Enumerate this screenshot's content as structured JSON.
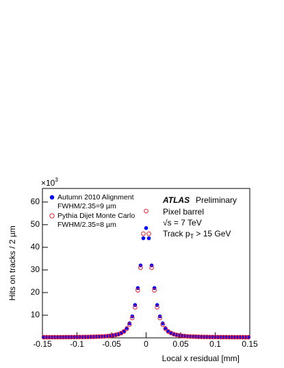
{
  "chart_data": {
    "type": "scatter",
    "x_label": "Local x residual [mm]",
    "y_label": "Hits on tracks / 2 µm",
    "y_multiplier": {
      "base": "×10",
      "exponent": "3"
    },
    "xlim": [
      -0.15,
      0.15
    ],
    "ylim": [
      0,
      66
    ],
    "xticks": [
      -0.15,
      -0.1,
      -0.05,
      0,
      0.05,
      0.1,
      0.15
    ],
    "yticks": [
      10,
      20,
      30,
      40,
      50,
      60
    ],
    "x": [
      -0.148,
      -0.144,
      -0.14,
      -0.136,
      -0.132,
      -0.128,
      -0.124,
      -0.12,
      -0.116,
      -0.112,
      -0.108,
      -0.104,
      -0.1,
      -0.096,
      -0.092,
      -0.088,
      -0.084,
      -0.08,
      -0.076,
      -0.072,
      -0.068,
      -0.064,
      -0.06,
      -0.056,
      -0.052,
      -0.048,
      -0.044,
      -0.04,
      -0.036,
      -0.032,
      -0.028,
      -0.024,
      -0.02,
      -0.016,
      -0.012,
      -0.008,
      -0.004,
      0,
      0.004,
      0.008,
      0.012,
      0.016,
      0.02,
      0.024,
      0.028,
      0.032,
      0.036,
      0.04,
      0.044,
      0.048,
      0.052,
      0.056,
      0.06,
      0.064,
      0.068,
      0.072,
      0.076,
      0.08,
      0.084,
      0.088,
      0.092,
      0.096,
      0.1,
      0.104,
      0.108,
      0.112,
      0.116,
      0.12,
      0.124,
      0.128,
      0.132,
      0.136,
      0.14,
      0.144,
      0.148
    ],
    "series": [
      {
        "name": "Autumn 2010 Alignment",
        "note": "FWHM/2.35=9 µm",
        "color": "#0000ff",
        "marker": "filled",
        "values": [
          0.27,
          0.27,
          0.28,
          0.28,
          0.29,
          0.29,
          0.3,
          0.3,
          0.31,
          0.32,
          0.33,
          0.34,
          0.35,
          0.36,
          0.37,
          0.39,
          0.41,
          0.43,
          0.46,
          0.5,
          0.54,
          0.6,
          0.68,
          0.78,
          0.9,
          1.1,
          1.35,
          1.7,
          2.2,
          3.0,
          4.3,
          6.4,
          9.5,
          14.5,
          22,
          32,
          44,
          48.5,
          44,
          32,
          22,
          14.5,
          9.5,
          6.4,
          4.3,
          3.0,
          2.2,
          1.7,
          1.35,
          1.1,
          0.9,
          0.78,
          0.68,
          0.6,
          0.54,
          0.5,
          0.46,
          0.43,
          0.41,
          0.39,
          0.37,
          0.36,
          0.35,
          0.34,
          0.33,
          0.32,
          0.31,
          0.3,
          0.3,
          0.29,
          0.29,
          0.28,
          0.28,
          0.27,
          0.27
        ]
      },
      {
        "name": "Pythia Dijet Monte Carlo",
        "note": "FWHM/2.35=8 µm",
        "color": "#e8202a",
        "marker": "open",
        "values": [
          0.27,
          0.27,
          0.28,
          0.28,
          0.29,
          0.29,
          0.3,
          0.3,
          0.31,
          0.32,
          0.33,
          0.34,
          0.35,
          0.36,
          0.37,
          0.39,
          0.41,
          0.43,
          0.46,
          0.5,
          0.54,
          0.6,
          0.68,
          0.78,
          0.9,
          1.1,
          1.3,
          1.6,
          2.1,
          2.8,
          4.0,
          5.9,
          8.8,
          13.5,
          21,
          31,
          46,
          56,
          46,
          31,
          21,
          13.5,
          8.8,
          5.9,
          4.0,
          2.8,
          2.1,
          1.6,
          1.3,
          1.1,
          0.9,
          0.78,
          0.68,
          0.6,
          0.54,
          0.5,
          0.46,
          0.43,
          0.41,
          0.39,
          0.37,
          0.36,
          0.35,
          0.34,
          0.33,
          0.32,
          0.31,
          0.3,
          0.3,
          0.29,
          0.29,
          0.28,
          0.28,
          0.27,
          0.27
        ]
      }
    ],
    "annotations": {
      "experiment": "ATLAS",
      "status": "Preliminary",
      "detector": "Pixel barrel",
      "energy": "√s = 7 TeV",
      "cut": {
        "text": "Track p",
        "sub": "T",
        "after": " > 15 GeV"
      }
    }
  }
}
